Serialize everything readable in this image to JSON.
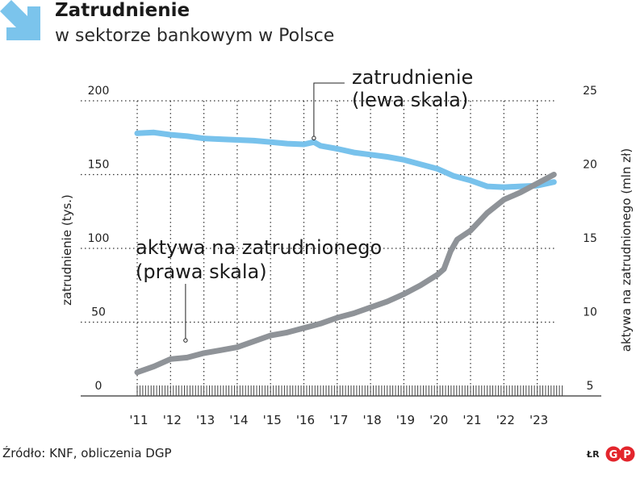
{
  "header": {
    "title": "Zatrudnienie",
    "subtitle": "w sektorze bankowym w Polsce"
  },
  "footer": {
    "source": "Źródło: KNF, obliczenia DGP",
    "author": "ŁR",
    "brand_glyphs": [
      "G",
      "P"
    ]
  },
  "colors": {
    "employment": "#78c2ec",
    "assets": "#8f9398",
    "brand_red": "#e3262d",
    "arrow": "#7bc4ec"
  },
  "chart_data": {
    "type": "line",
    "x_tick_labels": [
      "'11",
      "'12",
      "'13",
      "'14",
      "'15",
      "'16",
      "'17",
      "'18",
      "'19",
      "'20",
      "'21",
      "'22",
      "'23"
    ],
    "ylabel_left": "zatrudnienie (tys.)",
    "ylabel_right": "aktywa na zatrudnionego (mln zł)",
    "ylim_left": [
      0,
      200
    ],
    "ylim_right": [
      5,
      25
    ],
    "yticks_left": [
      0,
      50,
      100,
      150,
      200
    ],
    "yticks_right": [
      5,
      10,
      15,
      20,
      25
    ],
    "grid": "dotted",
    "series": [
      {
        "name": "zatrudnienie\n(lewa skala)",
        "label_lines": [
          "zatrudnienie",
          "(lewa skala)"
        ],
        "axis": "left",
        "x": [
          2011.0,
          2011.5,
          2012.0,
          2012.5,
          2013.0,
          2013.5,
          2014.0,
          2014.5,
          2015.0,
          2015.5,
          2016.0,
          2016.3,
          2016.5,
          2017.0,
          2017.5,
          2018.0,
          2018.5,
          2019.0,
          2019.5,
          2020.0,
          2020.5,
          2021.0,
          2021.5,
          2022.0,
          2022.5,
          2023.0,
          2023.5
        ],
        "values": [
          178,
          178.5,
          177,
          176,
          174.5,
          174,
          173.5,
          173,
          172,
          171,
          170.5,
          172,
          169.5,
          167.5,
          165,
          163.5,
          162,
          160,
          157,
          154,
          149,
          146,
          142,
          141.5,
          142,
          142.5,
          145
        ]
      },
      {
        "name": "aktywa na zatrudnionego\n(prawa skala)",
        "label_lines": [
          "aktywa na zatrudnionego",
          "(prawa skala)"
        ],
        "axis": "right",
        "x": [
          2011.0,
          2011.5,
          2012.0,
          2012.5,
          2013.0,
          2013.5,
          2014.0,
          2014.5,
          2015.0,
          2015.5,
          2016.0,
          2016.5,
          2017.0,
          2017.5,
          2018.0,
          2018.5,
          2019.0,
          2019.5,
          2020.0,
          2020.2,
          2020.4,
          2020.6,
          2021.0,
          2021.5,
          2022.0,
          2022.5,
          2023.0,
          2023.5
        ],
        "values": [
          6.6,
          7.0,
          7.5,
          7.6,
          7.9,
          8.1,
          8.3,
          8.7,
          9.1,
          9.3,
          9.6,
          9.9,
          10.3,
          10.6,
          11.0,
          11.4,
          11.9,
          12.5,
          13.2,
          13.6,
          14.8,
          15.6,
          16.2,
          17.4,
          18.3,
          18.8,
          19.4,
          20.0
        ]
      }
    ]
  }
}
